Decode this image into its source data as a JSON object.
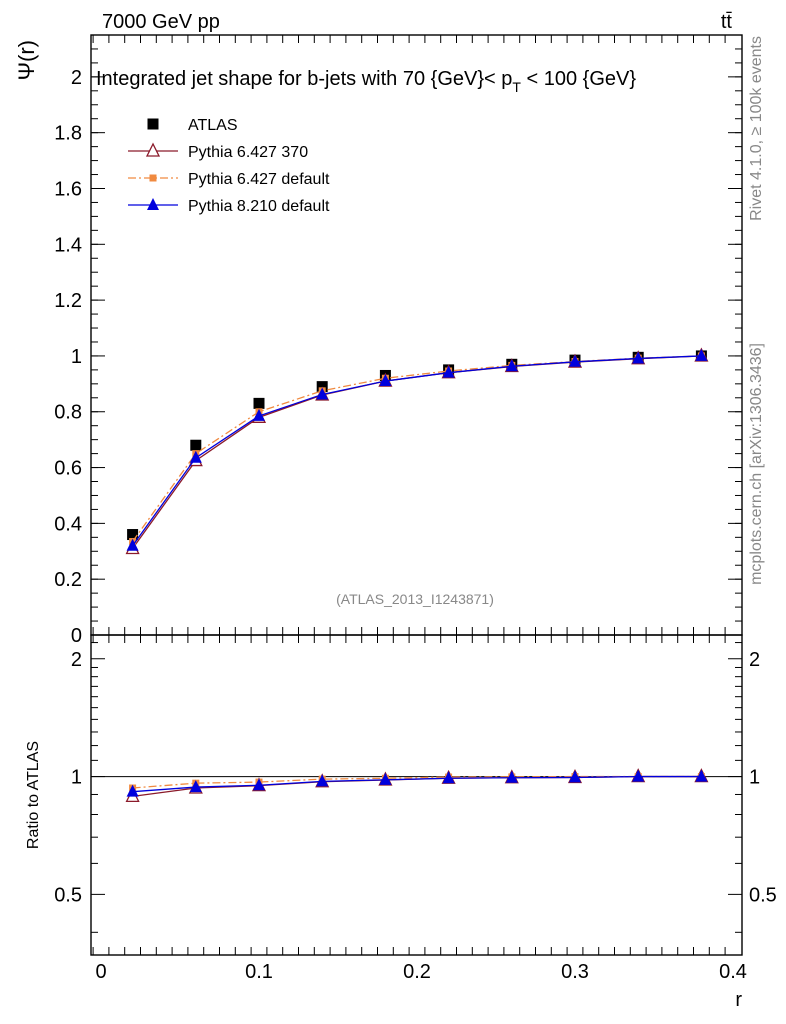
{
  "header": {
    "energy_label": "7000 GeV pp",
    "process_label": "tt̄"
  },
  "side": {
    "rivet_label": "Rivet 4.1.0, ≥ 100k events",
    "source_label": "mcplots.cern.ch [arXiv:1306.3436]"
  },
  "chart_data": [
    {
      "type": "scatter",
      "title": "Integrated jet shape for b-jets with 70 {GeV}< p_T < 100 {GeV}",
      "title_parts": {
        "main": "Integrated jet shape for b-jets with 70 {GeV}< p",
        "sub": "T",
        "tail": " < 100 {GeV}"
      },
      "analysis_label": "(ATLAS_2013_I1243871)",
      "xlabel": "r",
      "ylabel": "Ψ(r)",
      "xlim": [
        0,
        0.4
      ],
      "ylim": [
        0,
        2.15
      ],
      "grid": false,
      "legend_position": "top-left",
      "x": [
        0.02,
        0.06,
        0.1,
        0.14,
        0.18,
        0.22,
        0.26,
        0.3,
        0.34,
        0.38
      ],
      "y_ticks": [
        0,
        0.2,
        0.4,
        0.6,
        0.8,
        1,
        1.2,
        1.4,
        1.6,
        1.8,
        2
      ],
      "y_tick_labels": [
        "0",
        "0.2",
        "0.4",
        "0.6",
        "0.8",
        "1",
        "1.2",
        "1.4",
        "1.6",
        "1.8",
        "2"
      ],
      "series": [
        {
          "name": "ATLAS",
          "color": "#000000",
          "marker": "square",
          "values": [
            0.36,
            0.68,
            0.83,
            0.89,
            0.93,
            0.95,
            0.97,
            0.985,
            0.995,
            1.0
          ]
        },
        {
          "name": "Pythia 6.427 370",
          "color": "#8b1a2a",
          "marker": "open-triangle",
          "line": "solid",
          "values": [
            0.31,
            0.625,
            0.78,
            0.86,
            0.91,
            0.94,
            0.962,
            0.978,
            0.99,
            1.0
          ]
        },
        {
          "name": "Pythia 6.427 default",
          "color": "#f08a40",
          "marker": "small-square",
          "line": "dashdot",
          "values": [
            0.335,
            0.65,
            0.8,
            0.875,
            0.92,
            0.946,
            0.966,
            0.98,
            0.992,
            1.0
          ]
        },
        {
          "name": "Pythia 8.210 default",
          "color": "#0000dd",
          "marker": "triangle",
          "line": "solid",
          "values": [
            0.32,
            0.635,
            0.785,
            0.862,
            0.91,
            0.94,
            0.963,
            0.979,
            0.991,
            1.0
          ]
        }
      ]
    },
    {
      "type": "scatter",
      "title": "",
      "xlabel": "r",
      "ylabel": "Ratio to ATLAS",
      "xlim": [
        0,
        0.4
      ],
      "ylim": [
        0.35,
        2.3
      ],
      "scale": "log",
      "x_ticks": [
        0,
        0.1,
        0.2,
        0.3,
        0.4
      ],
      "x_tick_labels": [
        "0",
        "0.1",
        "0.2",
        "0.3",
        "0.4"
      ],
      "y_ticks": [
        0.5,
        1,
        2
      ],
      "y_tick_labels": [
        "0.5",
        "1",
        "2"
      ],
      "x": [
        0.02,
        0.06,
        0.1,
        0.14,
        0.18,
        0.22,
        0.26,
        0.3,
        0.34,
        0.38
      ],
      "series": [
        {
          "name": "Pythia 6.427 370",
          "color": "#8b1a2a",
          "marker": "open-triangle",
          "line": "solid",
          "values": [
            0.89,
            0.935,
            0.948,
            0.97,
            0.98,
            0.99,
            0.993,
            0.995,
            1.0,
            1.0
          ]
        },
        {
          "name": "Pythia 6.427 default",
          "color": "#f08a40",
          "marker": "small-square",
          "line": "dashdot",
          "values": [
            0.935,
            0.962,
            0.968,
            0.985,
            0.99,
            0.997,
            0.998,
            1.0,
            1.0,
            1.0
          ]
        },
        {
          "name": "Pythia 8.210 default",
          "color": "#0000dd",
          "marker": "triangle",
          "line": "solid",
          "values": [
            0.915,
            0.94,
            0.95,
            0.972,
            0.981,
            0.99,
            0.993,
            0.995,
            1.0,
            1.0
          ]
        }
      ]
    }
  ]
}
